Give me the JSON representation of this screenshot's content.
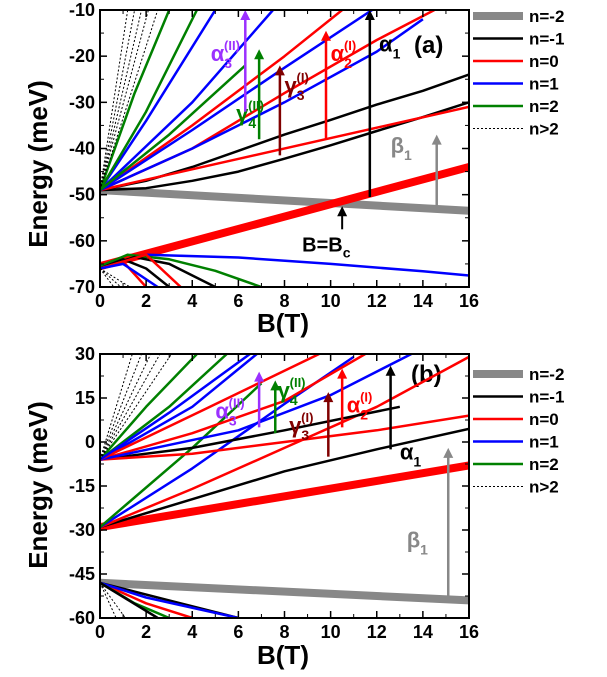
{
  "chart_data": [
    {
      "panel_label": "(a)",
      "type": "line",
      "xlabel": "B(T)",
      "ylabel": "Energy (meV)",
      "xlim": [
        0,
        16
      ],
      "ylim": [
        -70,
        -10
      ],
      "xticks": [
        0,
        2,
        4,
        6,
        8,
        10,
        12,
        14,
        16
      ],
      "yticks": [
        -70,
        -60,
        -50,
        -40,
        -30,
        -20,
        -10
      ],
      "legend": [
        "n=-2",
        "n=-1",
        "n=0",
        "n=1",
        "n=2",
        "n>2"
      ],
      "series": [
        {
          "name": "n=-2",
          "color": "#888888",
          "width": 8,
          "x": [
            0,
            16
          ],
          "y": [
            -49,
            -53.5
          ]
        },
        {
          "name": "n=0",
          "color": "#ff0000",
          "width": 8,
          "x": [
            0,
            16
          ],
          "y": [
            -65.5,
            -44
          ]
        },
        {
          "name": "n=-1",
          "color": "#000000",
          "width": 2.5,
          "x": [
            0,
            2,
            4,
            6,
            8,
            10,
            12,
            14,
            16
          ],
          "y": [
            -49,
            -48.6,
            -47,
            -45,
            -42.2,
            -39.3,
            -36.2,
            -33.2,
            -30
          ]
        },
        {
          "name": "n=-1",
          "color": "#000000",
          "width": 2.5,
          "x": [
            0,
            2,
            4,
            6,
            8,
            10,
            12,
            14,
            16
          ],
          "y": [
            -49,
            -47,
            -44,
            -40.5,
            -37,
            -33.8,
            -30.5,
            -27.5,
            -24
          ]
        },
        {
          "name": "n=0",
          "color": "#ff0000",
          "width": 2.5,
          "x": [
            0,
            16
          ],
          "y": [
            -49,
            -31
          ]
        },
        {
          "name": "n=0",
          "color": "#ff0000",
          "width": 2.5,
          "x": [
            0,
            4,
            8,
            12,
            14.5
          ],
          "y": [
            -49,
            -40,
            -28,
            -16.5,
            -10
          ]
        },
        {
          "name": "n=0",
          "color": "#ff0000",
          "width": 2.5,
          "x": [
            0,
            4,
            8,
            10.5
          ],
          "y": [
            -49,
            -35,
            -20,
            -10
          ]
        },
        {
          "name": "n=1",
          "color": "#0000ff",
          "width": 2.5,
          "x": [
            0,
            4,
            8,
            12,
            14
          ],
          "y": [
            -49,
            -40,
            -30,
            -19,
            -12
          ]
        },
        {
          "name": "n=1",
          "color": "#0000ff",
          "width": 2.5,
          "x": [
            0,
            4,
            8,
            11.8
          ],
          "y": [
            -49,
            -36,
            -22.5,
            -10
          ]
        },
        {
          "name": "n=1",
          "color": "#0000ff",
          "width": 2.5,
          "x": [
            0,
            4,
            7.5
          ],
          "y": [
            -49,
            -30,
            -10
          ]
        },
        {
          "name": "n=1",
          "color": "#0000ff",
          "width": 2.5,
          "x": [
            0,
            2,
            5
          ],
          "y": [
            -49,
            -34,
            -10
          ]
        },
        {
          "name": "n=1",
          "color": "#0000ff",
          "width": 2.5,
          "x": [
            0,
            2,
            6,
            10,
            14,
            16
          ],
          "y": [
            -66,
            -63,
            -63.6,
            -65,
            -66.6,
            -67.5
          ]
        },
        {
          "name": "n=2",
          "color": "#008000",
          "width": 2.5,
          "x": [
            0,
            3,
            6.3
          ],
          "y": [
            -49,
            -37,
            -22
          ]
        },
        {
          "name": "n=2",
          "color": "#008000",
          "width": 2.5,
          "x": [
            0,
            2,
            4.2
          ],
          "y": [
            -49,
            -32,
            -10
          ]
        },
        {
          "name": "n=2",
          "color": "#008000",
          "width": 2.5,
          "x": [
            0,
            1.5,
            3
          ],
          "y": [
            -49,
            -28,
            -10
          ]
        },
        {
          "name": "n=2",
          "color": "#008000",
          "width": 2.5,
          "x": [
            0,
            1.2,
            3,
            5,
            7
          ],
          "y": [
            -65.5,
            -63,
            -64,
            -66.5,
            -70
          ]
        },
        {
          "name": "n=-1",
          "color": "#000000",
          "width": 2.5,
          "x": [
            0,
            1,
            2,
            3
          ],
          "y": [
            -66,
            -64,
            -66,
            -70
          ]
        },
        {
          "name": "n=-1",
          "color": "#000000",
          "width": 2.5,
          "x": [
            0,
            1.5,
            3,
            5
          ],
          "y": [
            -66,
            -63.5,
            -65,
            -70
          ]
        },
        {
          "name": "n=0",
          "color": "#ff0000",
          "width": 2.5,
          "x": [
            0,
            1,
            2
          ],
          "y": [
            -66,
            -64.5,
            -70
          ]
        },
        {
          "name": "n=0",
          "color": "#ff0000",
          "width": 2.5,
          "x": [
            0,
            2,
            3.5
          ],
          "y": [
            -66,
            -63,
            -70
          ]
        },
        {
          "name": "n=1",
          "color": "#0000ff",
          "width": 2.5,
          "x": [
            0,
            1,
            2.5
          ],
          "y": [
            -66,
            -65,
            -70
          ]
        },
        {
          "name": "n>2",
          "color": "#000000",
          "width": 1,
          "dash": true,
          "x": [
            0,
            1.2
          ],
          "y": [
            -49,
            -10
          ]
        },
        {
          "name": "n>2",
          "color": "#000000",
          "width": 1,
          "dash": true,
          "x": [
            0,
            1.5
          ],
          "y": [
            -49,
            -10
          ]
        },
        {
          "name": "n>2",
          "color": "#000000",
          "width": 1,
          "dash": true,
          "x": [
            0,
            1.8
          ],
          "y": [
            -49,
            -10
          ]
        },
        {
          "name": "n>2",
          "color": "#000000",
          "width": 1,
          "dash": true,
          "x": [
            0,
            2.1
          ],
          "y": [
            -49,
            -10
          ]
        },
        {
          "name": "n>2",
          "color": "#000000",
          "width": 1,
          "dash": true,
          "x": [
            0,
            2.5
          ],
          "y": [
            -49,
            -10
          ]
        },
        {
          "name": "n>2",
          "color": "#000000",
          "width": 1,
          "dash": true,
          "x": [
            0,
            0.6
          ],
          "y": [
            -66,
            -70
          ]
        },
        {
          "name": "n>2",
          "color": "#000000",
          "width": 1,
          "dash": true,
          "x": [
            0,
            0.9
          ],
          "y": [
            -66,
            -70
          ]
        },
        {
          "name": "n>2",
          "color": "#000000",
          "width": 1,
          "dash": true,
          "x": [
            0,
            1.3
          ],
          "y": [
            -66,
            -70
          ]
        }
      ],
      "arrows": [
        {
          "label": "α1",
          "sym": "α",
          "sub": "1",
          "sup": "",
          "color": "#000000",
          "x": 11.7,
          "y_from": -50.5,
          "y_to": -10,
          "lx": 12.1,
          "ly": -19
        },
        {
          "label": "α2(I)",
          "sym": "α",
          "sub": "2",
          "sup": "(I)",
          "color": "#ff0000",
          "x": 9.8,
          "y_from": -38,
          "y_to": -14.5,
          "lx": 10.0,
          "ly": -21
        },
        {
          "label": "γ3(I)",
          "sym": "γ",
          "sub": "3",
          "sup": "(I)",
          "color": "#800000",
          "x": 7.8,
          "y_from": -41.5,
          "y_to": -22,
          "lx": 8.0,
          "ly": -28
        },
        {
          "label": "γ4(II)",
          "sym": "γ",
          "sub": "4",
          "sup": "(II)",
          "color": "#008000",
          "x": 6.9,
          "y_from": -38,
          "y_to": -18.5,
          "lx": 5.9,
          "ly": -34
        },
        {
          "label": "α3(II)",
          "sym": "α",
          "sub": "3",
          "sup": "(II)",
          "color": "#9b30ff",
          "x": 6.3,
          "y_from": -32,
          "y_to": -10,
          "lx": 4.8,
          "ly": -21
        },
        {
          "label": "β1",
          "sym": "β",
          "sub": "1",
          "sup": "",
          "color": "#888888",
          "x": 14.6,
          "y_from": -53,
          "y_to": -37,
          "lx": 12.6,
          "ly": -41
        }
      ],
      "annotation": {
        "text_main": "B=B",
        "text_sub": "c",
        "x": 10.5,
        "y_tip": -52.5,
        "y_tail": -57.5
      },
      "legend_layout": "right"
    },
    {
      "panel_label": "(b)",
      "type": "line",
      "xlabel": "B(T)",
      "ylabel": "Energy (meV)",
      "xlim": [
        0,
        16
      ],
      "ylim": [
        -60,
        30
      ],
      "xticks": [
        0,
        2,
        4,
        6,
        8,
        10,
        12,
        14,
        16
      ],
      "yticks": [
        -60,
        -45,
        -30,
        -15,
        0,
        15,
        30
      ],
      "legend": [
        "n=-2",
        "n=-1",
        "n=0",
        "n=1",
        "n=2",
        "n>2"
      ],
      "series": [
        {
          "name": "n=-2",
          "color": "#888888",
          "width": 8,
          "x": [
            0,
            16
          ],
          "y": [
            -48,
            -54
          ]
        },
        {
          "name": "n=0",
          "color": "#ff0000",
          "width": 8,
          "x": [
            0,
            16
          ],
          "y": [
            -29,
            -8
          ]
        },
        {
          "name": "n=-1",
          "color": "#000000",
          "width": 2.5,
          "x": [
            0,
            4,
            8,
            12,
            16
          ],
          "y": [
            -29,
            -19.5,
            -10,
            -2.5,
            4.5
          ]
        },
        {
          "name": "n=0",
          "color": "#ff0000",
          "width": 2.5,
          "x": [
            0,
            4,
            8,
            12,
            16
          ],
          "y": [
            -29,
            -16,
            -2,
            12,
            29
          ]
        },
        {
          "name": "n=1",
          "color": "#0000ff",
          "width": 2.5,
          "x": [
            0,
            4,
            8,
            11
          ],
          "y": [
            -29,
            -9,
            13,
            29
          ]
        },
        {
          "name": "n=2",
          "color": "#008000",
          "width": 2.5,
          "x": [
            0,
            4,
            7
          ],
          "y": [
            -29,
            -2,
            20
          ]
        },
        {
          "name": "n=-1",
          "color": "#000000",
          "width": 2.5,
          "x": [
            0,
            4,
            8,
            13
          ],
          "y": [
            -6,
            -2,
            4,
            12
          ]
        },
        {
          "name": "n=0",
          "color": "#ff0000",
          "width": 2.5,
          "x": [
            0,
            4,
            8,
            12,
            16
          ],
          "y": [
            -6,
            -4,
            0,
            4,
            9
          ]
        },
        {
          "name": "n=0",
          "color": "#ff0000",
          "width": 2.5,
          "x": [
            0,
            4,
            8,
            11.5
          ],
          "y": [
            -6,
            3,
            14,
            30
          ]
        },
        {
          "name": "n=1",
          "color": "#0000ff",
          "width": 2.5,
          "x": [
            0,
            6,
            10,
            13.5
          ],
          "y": [
            -6,
            4,
            16,
            30
          ]
        },
        {
          "name": "n=1",
          "color": "#0000ff",
          "width": 2.5,
          "x": [
            0,
            4,
            6.8
          ],
          "y": [
            -6,
            12,
            30
          ]
        },
        {
          "name": "n=2",
          "color": "#008000",
          "width": 2.5,
          "x": [
            0,
            3,
            5.5
          ],
          "y": [
            -6,
            12,
            30
          ]
        },
        {
          "name": "n=2",
          "color": "#008000",
          "width": 2.5,
          "x": [
            0,
            2,
            4.2
          ],
          "y": [
            -6,
            12,
            30
          ]
        },
        {
          "name": "n=0",
          "color": "#ff0000",
          "width": 2.5,
          "x": [
            0,
            4.5,
            9.5
          ],
          "y": [
            -6,
            11,
            30
          ]
        },
        {
          "name": "n=1",
          "color": "#0000ff",
          "width": 2.5,
          "x": [
            0,
            3,
            6.5
          ],
          "y": [
            -6,
            10,
            30
          ]
        },
        {
          "name": "n=-1",
          "color": "#000000",
          "width": 2.5,
          "x": [
            0,
            3,
            6
          ],
          "y": [
            -48,
            -54,
            -60
          ]
        },
        {
          "name": "n=0",
          "color": "#ff0000",
          "width": 2.5,
          "x": [
            0,
            2,
            4
          ],
          "y": [
            -48,
            -55,
            -60
          ]
        },
        {
          "name": "n=1",
          "color": "#0000ff",
          "width": 2.5,
          "x": [
            0,
            2,
            6
          ],
          "y": [
            -48,
            -53,
            -60
          ]
        },
        {
          "name": "n=2",
          "color": "#008000",
          "width": 2.5,
          "x": [
            0,
            1.5,
            3
          ],
          "y": [
            -48,
            -55,
            -60
          ]
        },
        {
          "name": "n=-1",
          "color": "#000000",
          "width": 2.5,
          "x": [
            0,
            2.5
          ],
          "y": [
            -48,
            -60
          ]
        },
        {
          "name": "n>2",
          "color": "#000000",
          "width": 1,
          "dash": true,
          "x": [
            0,
            1.4
          ],
          "y": [
            -6,
            30
          ]
        },
        {
          "name": "n>2",
          "color": "#000000",
          "width": 1,
          "dash": true,
          "x": [
            0,
            1.8
          ],
          "y": [
            -6,
            30
          ]
        },
        {
          "name": "n>2",
          "color": "#000000",
          "width": 1,
          "dash": true,
          "x": [
            0,
            2.2
          ],
          "y": [
            -6,
            30
          ]
        },
        {
          "name": "n>2",
          "color": "#000000",
          "width": 1,
          "dash": true,
          "x": [
            0,
            2.6
          ],
          "y": [
            -6,
            30
          ]
        },
        {
          "name": "n>2",
          "color": "#000000",
          "width": 1,
          "dash": true,
          "x": [
            0,
            3.1
          ],
          "y": [
            -6,
            30
          ]
        },
        {
          "name": "n>2",
          "color": "#000000",
          "width": 1,
          "dash": true,
          "x": [
            0,
            0.7
          ],
          "y": [
            -48,
            -60
          ]
        },
        {
          "name": "n>2",
          "color": "#000000",
          "width": 1,
          "dash": true,
          "x": [
            0,
            1.1
          ],
          "y": [
            -48,
            -60
          ]
        }
      ],
      "arrows": [
        {
          "label": "α1",
          "sym": "α",
          "sub": "1",
          "sup": "",
          "color": "#000000",
          "x": 12.6,
          "y_from": -2.5,
          "y_to": 26,
          "lx": 13.0,
          "ly": -6
        },
        {
          "label": "α2(I)",
          "sym": "α",
          "sub": "2",
          "sup": "(I)",
          "color": "#ff0000",
          "x": 10.5,
          "y_from": 5,
          "y_to": 25,
          "lx": 10.7,
          "ly": 10
        },
        {
          "label": "γ3(I)",
          "sym": "γ",
          "sub": "3",
          "sup": "(I)",
          "color": "#800000",
          "x": 9.9,
          "y_from": -5,
          "y_to": 17,
          "lx": 8.2,
          "ly": 3
        },
        {
          "label": "γ4(II)",
          "sym": "γ",
          "sub": "4",
          "sup": "(II)",
          "color": "#008000",
          "x": 7.6,
          "y_from": 3,
          "y_to": 21,
          "lx": 7.7,
          "ly": 15
        },
        {
          "label": "α3(II)",
          "sym": "α",
          "sub": "3",
          "sup": "(II)",
          "color": "#9b30ff",
          "x": 6.9,
          "y_from": 5,
          "y_to": 24,
          "lx": 5.0,
          "ly": 8
        },
        {
          "label": "β1",
          "sym": "β",
          "sub": "1",
          "sup": "",
          "color": "#888888",
          "x": 15.1,
          "y_from": -53,
          "y_to": -2,
          "lx": 13.3,
          "ly": -36
        }
      ],
      "legend_layout": "right"
    }
  ]
}
